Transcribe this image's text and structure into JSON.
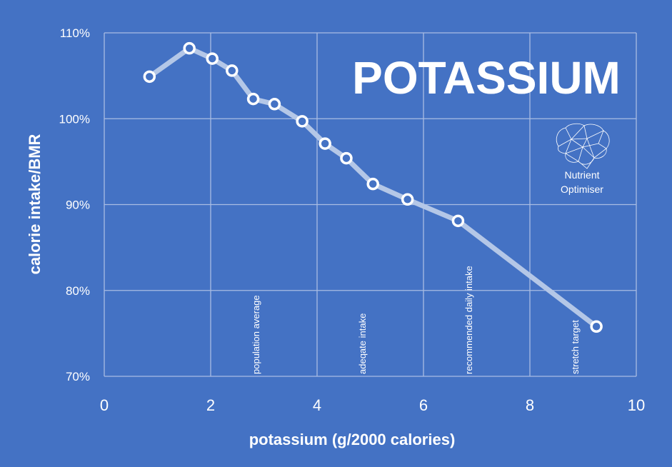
{
  "chart_data": {
    "type": "line",
    "title": "POTASSIUM",
    "xlabel": "potassium (g/2000 calories)",
    "ylabel": "calorie intake/BMR",
    "xlim": [
      0,
      10
    ],
    "ylim": [
      70,
      110
    ],
    "x_ticks": [
      "0",
      "2",
      "4",
      "6",
      "8",
      "10"
    ],
    "y_ticks": [
      "70%",
      "80%",
      "90%",
      "100%",
      "110%"
    ],
    "grid": true,
    "x": [
      0.85,
      1.6,
      2.03,
      2.4,
      2.8,
      3.2,
      3.72,
      4.15,
      4.55,
      5.05,
      5.7,
      6.65,
      9.25
    ],
    "y": [
      104.9,
      108.2,
      107.0,
      105.6,
      102.3,
      101.7,
      99.7,
      97.1,
      95.4,
      92.4,
      90.6,
      88.1,
      75.8
    ],
    "reference_lines": [
      {
        "x": 2.0,
        "label": "population average"
      },
      {
        "x": 4.0,
        "label": "adeqate intake"
      },
      {
        "x": 6.0,
        "label": "recommended daily intake"
      },
      {
        "x": 8.0,
        "label": "stretch target"
      }
    ],
    "colors": {
      "background": "#4472C4",
      "line": "#B4C7E7",
      "marker_fill": "#4472C4",
      "marker_stroke": "#FFFFFF",
      "grid": "#A9BDE3"
    }
  },
  "logo": {
    "line1": "Nutrient",
    "line2": "Optimiser",
    "icon": "brain-icon"
  }
}
